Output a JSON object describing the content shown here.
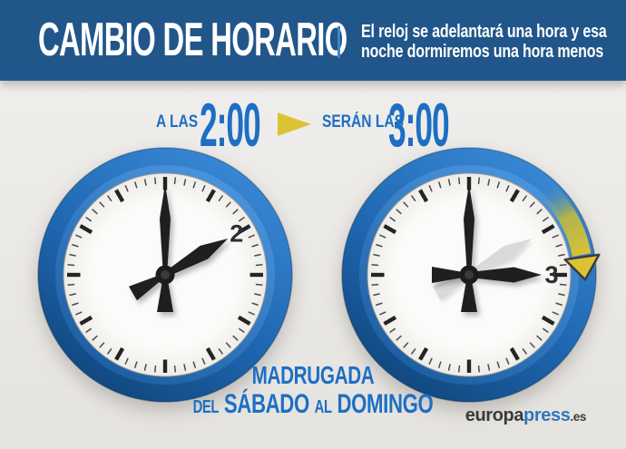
{
  "header": {
    "title": "CAMBIO DE HORARIO",
    "subtitle_line1": "El reloj se adelantará una hora y esa",
    "subtitle_line2": "noche dormiremos una hora menos"
  },
  "conversion": {
    "from_label": "A LAS",
    "from_time": "2:00",
    "arrow_icon": "right-triangle-arrow",
    "to_label": "SERÁN LAS",
    "to_time": "3:00"
  },
  "clocks": [
    {
      "id": "clock-before",
      "time_label": "2:00",
      "numeral": "2",
      "hour_angle_deg": 60,
      "minute_angle_deg": 0,
      "ghost_hour_angle_deg": null,
      "advance_arrow": false
    },
    {
      "id": "clock-after",
      "time_label": "3:00",
      "numeral": "3",
      "hour_angle_deg": 90,
      "minute_angle_deg": 0,
      "ghost_hour_angle_deg": 60,
      "advance_arrow": true
    }
  ],
  "footer": {
    "line1": "MADRUGADA",
    "del": "DEL",
    "saturday": "SÁBADO",
    "al": "AL",
    "sunday": "DOMINGO"
  },
  "brand": {
    "part1": "europa",
    "part2": "press",
    "part3": ".es"
  },
  "colors": {
    "header_bg": "#21568a",
    "header_divider": "#4285c6",
    "accent_blue": "#1d6fc4",
    "arrow_yellow": "#dcc334",
    "ring_blue_light": "#3c8ad8",
    "ring_blue_dark": "#0f4478",
    "clock_face": "#fcfbf9",
    "hand_dark": "#1f1f1f",
    "ghost_hand": "#d8d8d8",
    "numeral_dark": "#2e2e2e",
    "brand_dark": "#3a3a3a",
    "brand_blue": "#2f78bd",
    "background": "#ebe9e6",
    "text_white": "#ffffff"
  }
}
